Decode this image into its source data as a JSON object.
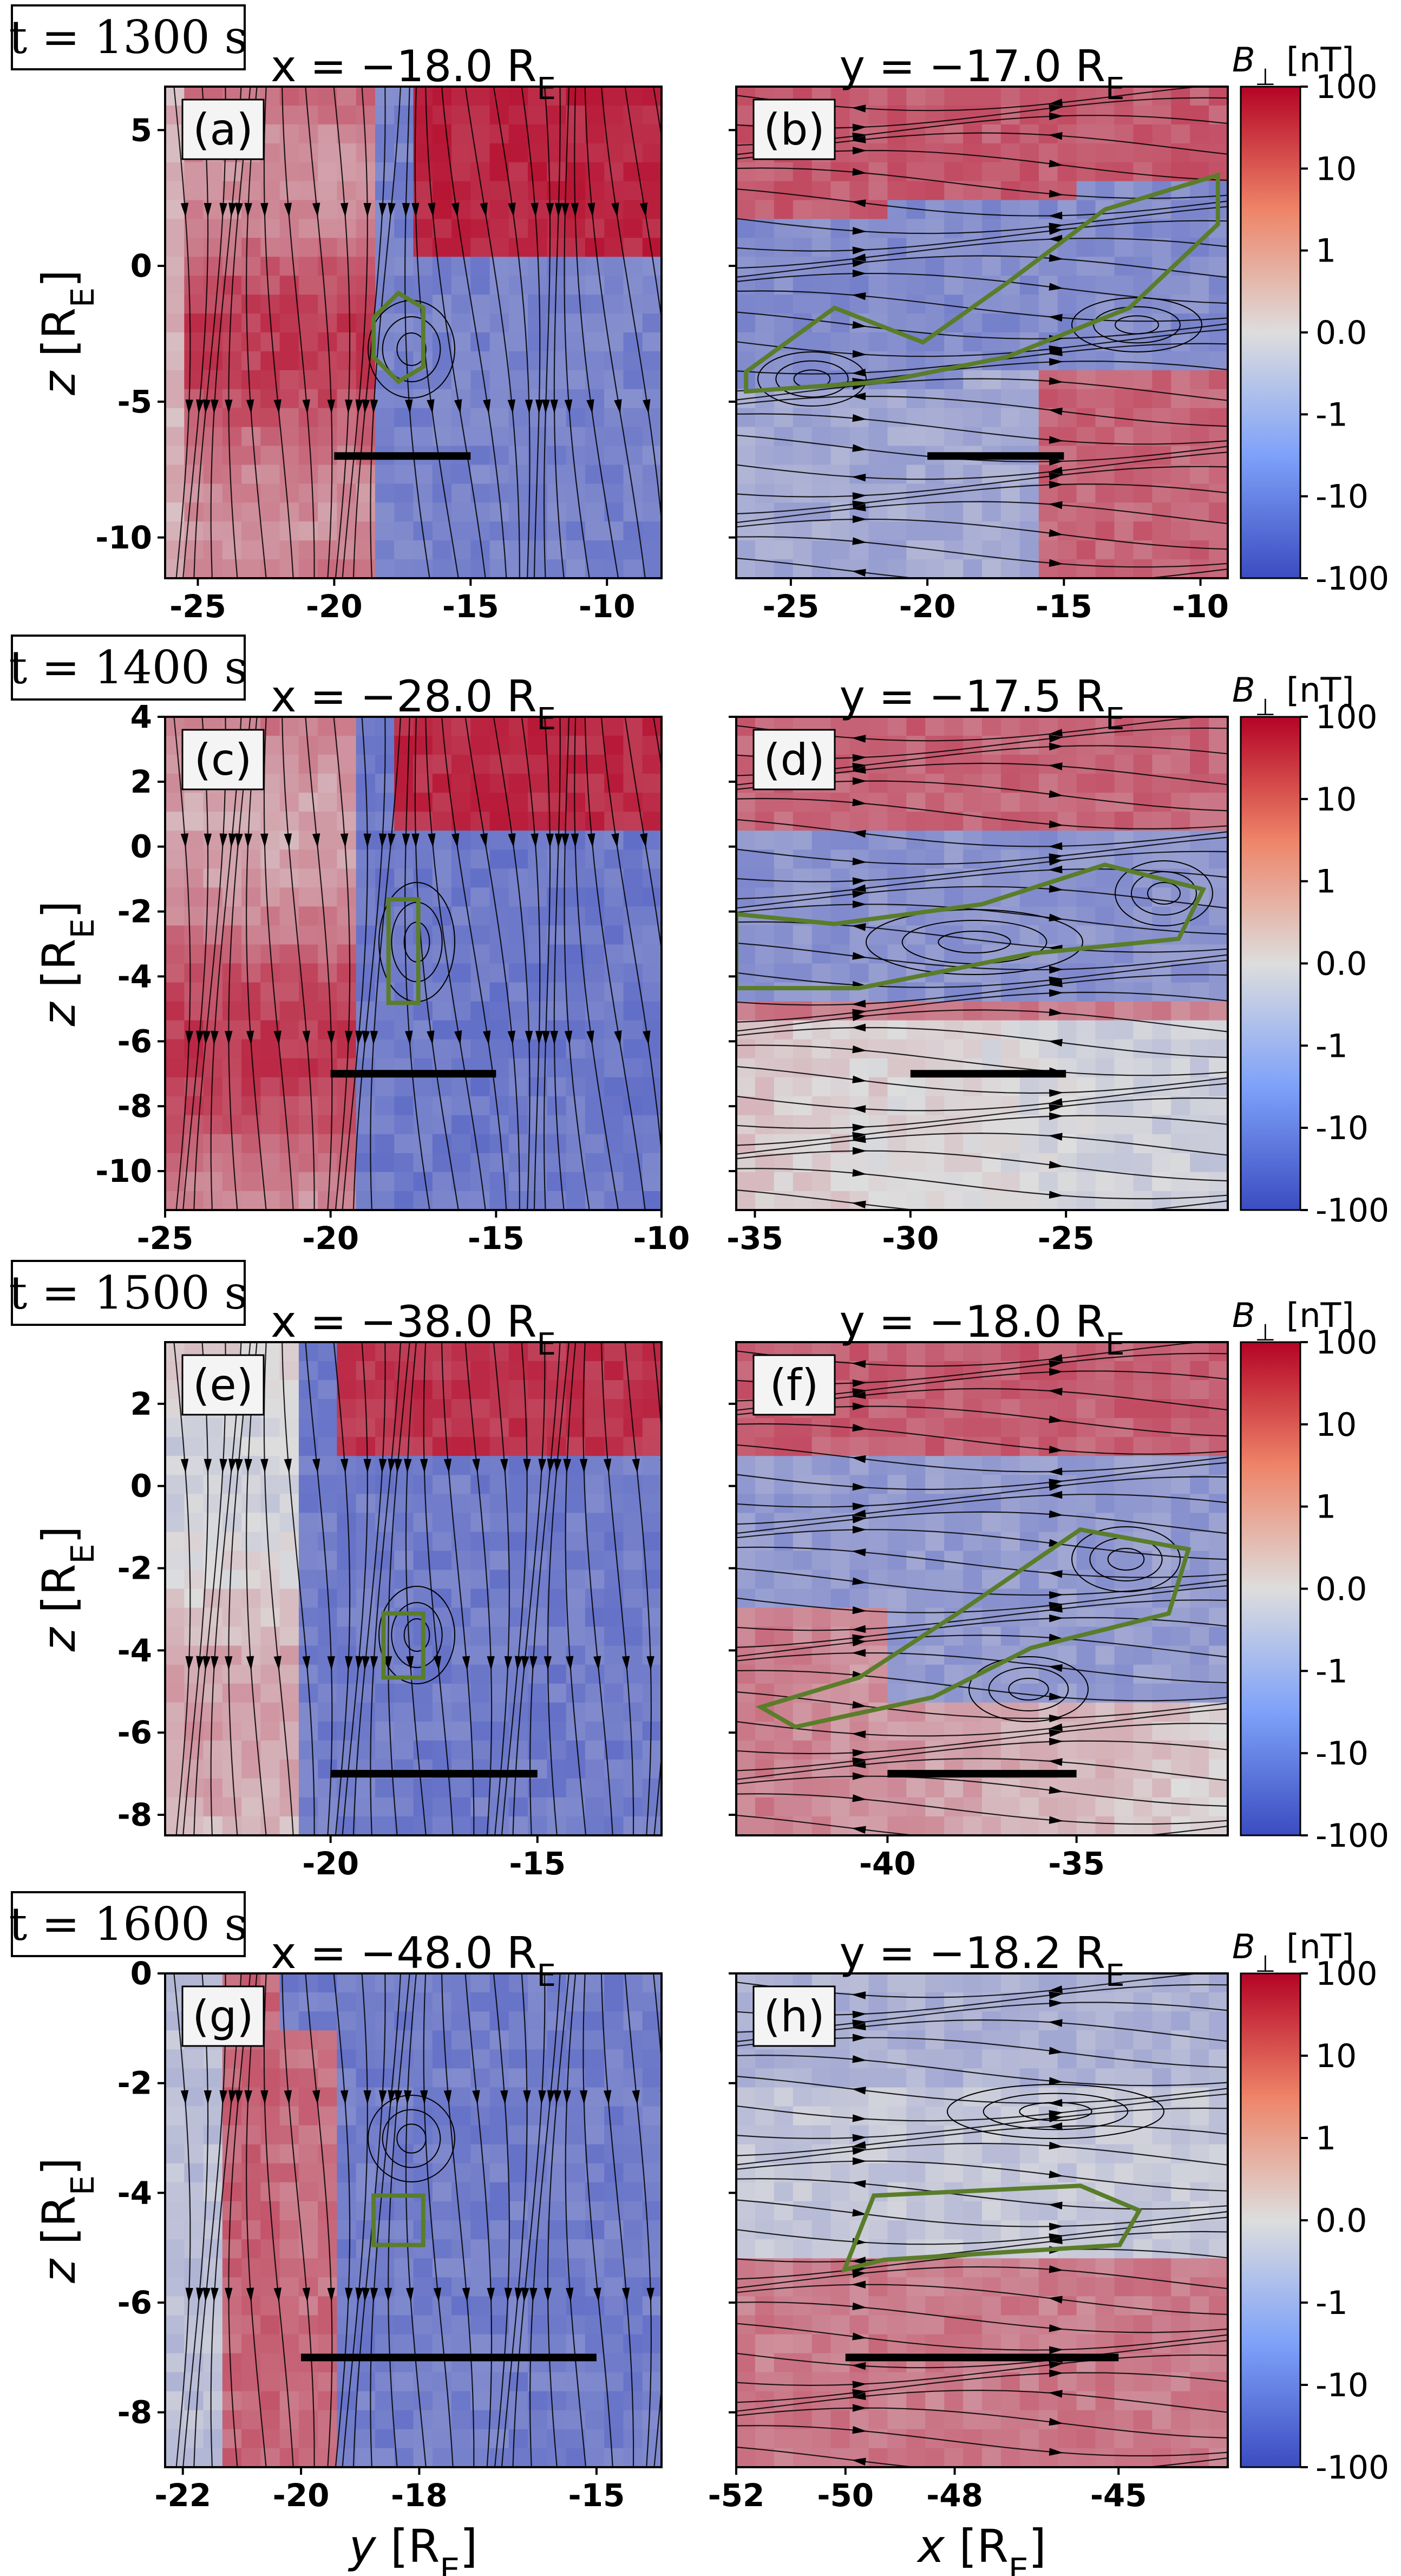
{
  "colormap": {
    "neg": "#3b4cc0",
    "mid": "#dddddd",
    "pos": "#b40426",
    "line": "#000000",
    "contour": "#5a7d2a"
  },
  "colorbar": {
    "label": "B⊥ [nT]",
    "ticks": [
      "100",
      "10",
      "1",
      "0.0",
      "-1",
      "-10",
      "-100"
    ]
  },
  "chart_data": [
    {
      "type": "heatmap",
      "panel": "(a)",
      "time_label": "t = 1300 s",
      "title": "x = −18.0 R_E",
      "xlabel": "",
      "ylabel": "z [R_E]",
      "xlim": [
        -26.2,
        -8.0
      ],
      "ylim": [
        -11.5,
        6.6
      ],
      "xticks": [
        "-25",
        "-20",
        "-15",
        "-10"
      ],
      "yticks": [
        "5",
        "0",
        "-5",
        "-10"
      ],
      "scale_bar": {
        "x": [
          -20,
          -15
        ],
        "y": -7.0
      }
    },
    {
      "type": "heatmap",
      "panel": "(b)",
      "title": "y = −17.0 R_E",
      "xlabel": "",
      "ylabel": "",
      "xlim": [
        -27.0,
        -9.0
      ],
      "ylim": [
        -11.5,
        6.6
      ],
      "xticks": [
        "-25",
        "-20",
        "-15",
        "-10"
      ],
      "yticks": [],
      "scale_bar": {
        "x": [
          -20,
          -15
        ],
        "y": -7.0
      }
    },
    {
      "type": "heatmap",
      "panel": "(c)",
      "time_label": "t = 1400 s",
      "title": "x = −28.0 R_E",
      "xlabel": "",
      "ylabel": "z [R_E]",
      "xlim": [
        -25.0,
        -10.0
      ],
      "ylim": [
        -11.2,
        4.0
      ],
      "xticks": [
        "-25",
        "-20",
        "-15",
        "-10"
      ],
      "yticks": [
        "4",
        "2",
        "0",
        "-2",
        "-4",
        "-6",
        "-8",
        "-10"
      ],
      "scale_bar": {
        "x": [
          -20,
          -15
        ],
        "y": -7.0
      }
    },
    {
      "type": "heatmap",
      "panel": "(d)",
      "title": "y = −17.5 R_E",
      "xlabel": "",
      "ylabel": "",
      "xlim": [
        -35.6,
        -19.8
      ],
      "ylim": [
        -11.2,
        4.0
      ],
      "xticks": [
        "-35",
        "-30",
        "-25"
      ],
      "yticks": [],
      "scale_bar": {
        "x": [
          -30,
          -25
        ],
        "y": -7.0
      }
    },
    {
      "type": "heatmap",
      "panel": "(e)",
      "time_label": "t = 1500 s",
      "title": "x = −38.0 R_E",
      "xlabel": "",
      "ylabel": "z [R_E]",
      "xlim": [
        -24.0,
        -12.0
      ],
      "ylim": [
        -8.5,
        3.5
      ],
      "xticks": [
        "-20",
        "-15"
      ],
      "yticks": [
        "2",
        "0",
        "-2",
        "-4",
        "-6",
        "-8"
      ],
      "scale_bar": {
        "x": [
          -20,
          -15
        ],
        "y": -7.0
      }
    },
    {
      "type": "heatmap",
      "panel": "(f)",
      "title": "y = −18.0 R_E",
      "xlabel": "",
      "ylabel": "",
      "xlim": [
        -44.0,
        -31.0
      ],
      "ylim": [
        -8.5,
        3.5
      ],
      "xticks": [
        "-40",
        "-35"
      ],
      "yticks": [],
      "scale_bar": {
        "x": [
          -40,
          -35
        ],
        "y": -7.0
      }
    },
    {
      "type": "heatmap",
      "panel": "(g)",
      "time_label": "t = 1600 s",
      "title": "x = −48.0 R_E",
      "xlabel": "y [R_E]",
      "ylabel": "z [R_E]",
      "xlim": [
        -22.3,
        -13.9
      ],
      "ylim": [
        -9.0,
        0.0
      ],
      "xticks": [
        "-22",
        "-20",
        "-18",
        "-15"
      ],
      "xtick_values": [
        -22,
        -20,
        -18,
        -15
      ],
      "yticks": [
        "0",
        "-2",
        "-4",
        "-6",
        "-8"
      ],
      "scale_bar": {
        "x": [
          -20,
          -15
        ],
        "y": -7.0
      }
    },
    {
      "type": "heatmap",
      "panel": "(h)",
      "title": "y = −18.2 R_E",
      "xlabel": "x [R_E]",
      "ylabel": "",
      "xlim": [
        -52.0,
        -43.0
      ],
      "ylim": [
        -9.0,
        0.0
      ],
      "xticks": [
        "-52",
        "-50",
        "-48",
        "-45"
      ],
      "xtick_values": [
        -52,
        -50,
        -48,
        -45
      ],
      "yticks": [],
      "scale_bar": {
        "x": [
          -50,
          -45
        ],
        "y": -7.0
      }
    }
  ]
}
